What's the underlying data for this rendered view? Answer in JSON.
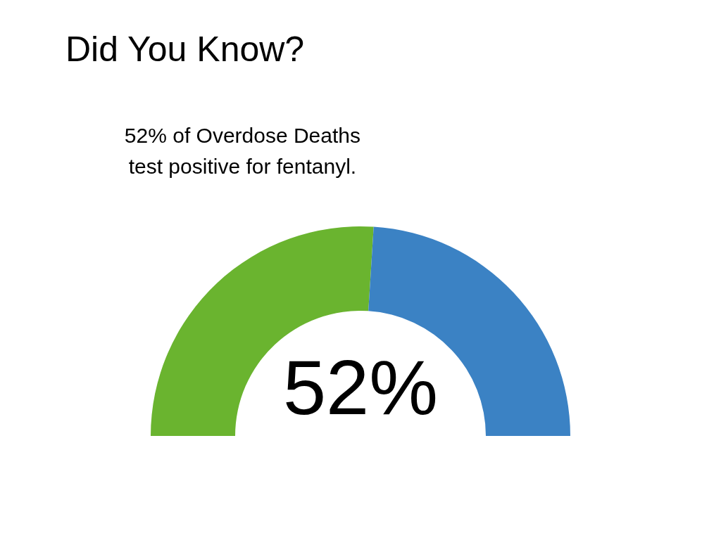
{
  "chart_data": {
    "type": "donut",
    "title": "Did You Know?",
    "subtitle": "52% of Overdose Deaths\ntest positive for fentanyl.",
    "categories": [
      null,
      null
    ],
    "values": [
      52,
      48
    ],
    "colors": [
      "#6ab42f",
      "#3b82c4"
    ],
    "value_labels": [
      "52%",
      null
    ]
  }
}
